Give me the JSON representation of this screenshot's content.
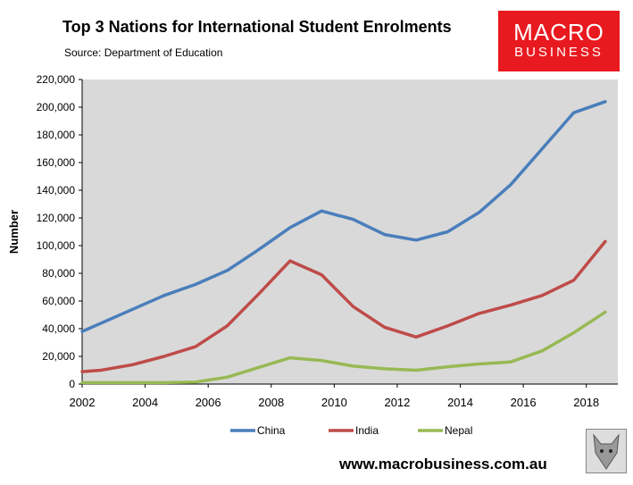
{
  "header": {
    "title": "Top 3 Nations for International Student Enrolments",
    "subtitle": "Source: Department of Education"
  },
  "logo": {
    "line1": "MACRO",
    "line2": "BUSINESS",
    "color": "#e8191f"
  },
  "footer": {
    "url": "www.macrobusiness.com.au"
  },
  "chart_data": {
    "type": "line",
    "title": "Top 3 Nations for International Student Enrolments",
    "ylabel": "Number",
    "xlabel": "",
    "xlim": [
      2002,
      2019
    ],
    "ylim": [
      0,
      220000
    ],
    "x_ticks": [
      2002,
      2004,
      2006,
      2008,
      2010,
      2012,
      2014,
      2016,
      2018
    ],
    "y_ticks": [
      0,
      20000,
      40000,
      60000,
      80000,
      100000,
      120000,
      140000,
      160000,
      180000,
      200000,
      220000
    ],
    "y_tick_labels": [
      "0",
      "20,000",
      "40,000",
      "60,000",
      "80,000",
      "100,000",
      "120,000",
      "140,000",
      "160,000",
      "180,000",
      "200,000",
      "220,000"
    ],
    "plot_background": "#d9d9d9",
    "grid": false,
    "legend_position": "bottom",
    "series": [
      {
        "name": "China",
        "color": "#4a7ebb",
        "x": [
          2002,
          2002.6,
          2003.6,
          2004.6,
          2005.6,
          2006.6,
          2007.6,
          2008.6,
          2009.6,
          2010.6,
          2011.6,
          2012.6,
          2013.6,
          2014.6,
          2015.6,
          2016.6,
          2017.6,
          2018.6
        ],
        "y": [
          38000,
          44000,
          54000,
          64000,
          72000,
          82000,
          97000,
          113000,
          125000,
          119000,
          108000,
          104000,
          110000,
          124000,
          144000,
          170000,
          196000,
          204000
        ]
      },
      {
        "name": "India",
        "color": "#be4b48",
        "x": [
          2002,
          2002.6,
          2003.6,
          2004.6,
          2005.6,
          2006.6,
          2007.6,
          2008.6,
          2009.6,
          2010.6,
          2011.6,
          2012.6,
          2013.6,
          2014.6,
          2015.6,
          2016.6,
          2017.6,
          2018.6
        ],
        "y": [
          9000,
          10000,
          14000,
          20000,
          27000,
          42000,
          65000,
          89000,
          79000,
          56000,
          41000,
          34000,
          42000,
          51000,
          57000,
          64000,
          75000,
          103000
        ]
      },
      {
        "name": "Nepal",
        "color": "#98b954",
        "x": [
          2002,
          2002.6,
          2003.6,
          2004.6,
          2005.6,
          2006.6,
          2007.6,
          2008.6,
          2009.6,
          2010.6,
          2011.6,
          2012.6,
          2013.6,
          2014.6,
          2015.6,
          2016.6,
          2017.6,
          2018.6
        ],
        "y": [
          1000,
          1000,
          1000,
          1000,
          1500,
          5000,
          12000,
          19000,
          17000,
          13000,
          11000,
          10000,
          12500,
          14500,
          16000,
          24000,
          37000,
          52000
        ]
      }
    ]
  }
}
